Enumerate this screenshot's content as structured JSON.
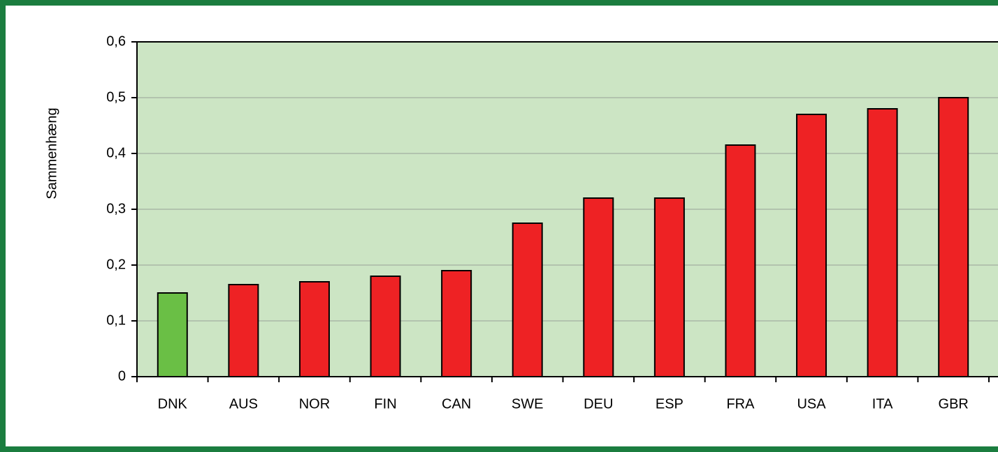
{
  "chart_data": {
    "type": "bar",
    "y_label": "Sammenhæng",
    "categories": [
      "DNK",
      "AUS",
      "NOR",
      "FIN",
      "CAN",
      "SWE",
      "DEU",
      "ESP",
      "FRA",
      "USA",
      "ITA",
      "GBR"
    ],
    "values": [
      0.15,
      0.165,
      0.17,
      0.18,
      0.19,
      0.275,
      0.32,
      0.32,
      0.415,
      0.47,
      0.48,
      0.5
    ],
    "colors": [
      "#6abf45",
      "#ee2224",
      "#ee2224",
      "#ee2224",
      "#ee2224",
      "#ee2224",
      "#ee2224",
      "#ee2224",
      "#ee2224",
      "#ee2224",
      "#ee2224",
      "#ee2224"
    ],
    "ylim": [
      0,
      0.6
    ],
    "yticks": [
      0,
      {
        "value": 0.1,
        "label": "0,1"
      },
      {
        "value": 0.2,
        "label": "0,2"
      },
      {
        "value": 0.3,
        "label": "0,3"
      },
      {
        "value": 0.4,
        "label": "0,4"
      },
      {
        "value": 0.5,
        "label": "0,5"
      },
      {
        "value": 0.6,
        "label": "0,6"
      }
    ],
    "grid": true
  }
}
